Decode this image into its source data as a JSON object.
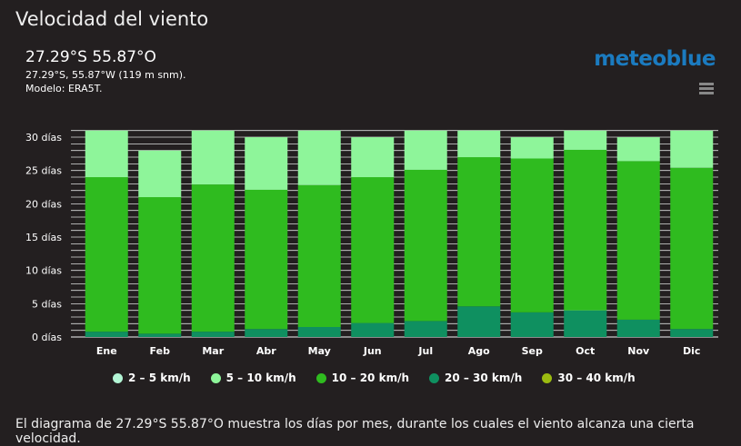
{
  "header": {
    "title": "Velocidad del viento",
    "coord": "27.29°S 55.87°O",
    "location": "27.29°S, 55.87°W (119 m snm).",
    "model": "Modelo: ERA5T.",
    "logo": "meteoblue"
  },
  "footer": "El diagrama de 27.29°S 55.87°O muestra los días por mes, durante los cuales el viento alcanza una cierta velocidad.",
  "chart_data": {
    "type": "bar",
    "stacked": true,
    "title": "Velocidad del viento",
    "ylabel": "días",
    "ylim": [
      0,
      31
    ],
    "yticks": [
      "0 días",
      "5 días",
      "10 días",
      "15 días",
      "20 días",
      "25 días",
      "30 días"
    ],
    "categories": [
      "Ene",
      "Feb",
      "Mar",
      "Abr",
      "May",
      "Jun",
      "Jul",
      "Ago",
      "Sep",
      "Oct",
      "Nov",
      "Dic"
    ],
    "series": [
      {
        "name": "30 – 40 km/h",
        "color": "#9bbb10",
        "values": [
          0,
          0,
          0,
          0,
          0,
          0,
          0,
          0,
          0,
          0,
          0,
          0
        ]
      },
      {
        "name": "20 – 30 km/h",
        "color": "#0f9060",
        "values": [
          0.8,
          0.5,
          0.8,
          1.2,
          1.5,
          2.1,
          2.4,
          4.6,
          3.7,
          4.0,
          2.6,
          1.2
        ]
      },
      {
        "name": "10 – 20 km/h",
        "color": "#2fbb1f",
        "values": [
          23.2,
          20.5,
          22.1,
          20.9,
          21.3,
          21.9,
          22.7,
          22.4,
          23.1,
          24.1,
          23.8,
          24.2
        ]
      },
      {
        "name": "5 – 10 km/h",
        "color": "#8ef59a",
        "values": [
          7,
          7,
          8.1,
          7.9,
          8.2,
          6,
          5.9,
          4,
          3.2,
          2.9,
          3.6,
          5.6
        ]
      },
      {
        "name": "2 – 5 km/h",
        "color": "#b3f5d5",
        "values": [
          0,
          0,
          0,
          0,
          0,
          0,
          0,
          0,
          0,
          0,
          0,
          0
        ]
      }
    ],
    "legend_order": [
      4,
      3,
      2,
      1,
      0
    ],
    "legend": "bottom"
  }
}
